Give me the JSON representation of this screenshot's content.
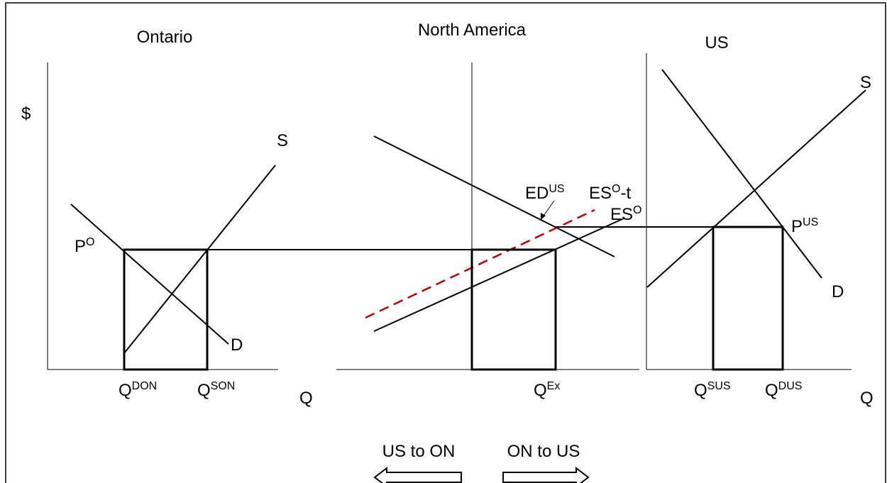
{
  "panels": [
    {
      "title": "Ontario",
      "y_label": "$",
      "x_label": "Q",
      "curves": [
        "S",
        "D"
      ],
      "price": {
        "base": "P",
        "sup": "O"
      },
      "quantities": [
        {
          "base": "Q",
          "sup": "DON"
        },
        {
          "base": "Q",
          "sup": "SON"
        }
      ]
    },
    {
      "title": "North America",
      "curves": [
        {
          "base": "ED",
          "sup": "US"
        },
        {
          "base": "ES",
          "sup": "O",
          "suffix": "-t"
        },
        {
          "base": "ES",
          "sup": "O"
        }
      ],
      "quantities": [
        {
          "base": "Q",
          "sup": "Ex"
        }
      ]
    },
    {
      "title": "US",
      "x_label": "Q",
      "curves": [
        "S",
        "D"
      ],
      "price": {
        "base": "P",
        "sup": "US"
      },
      "quantities": [
        {
          "base": "Q",
          "sup": "SUS"
        },
        {
          "base": "Q",
          "sup": "DUS"
        }
      ]
    }
  ],
  "arrows": [
    "US to ON",
    "ON to US"
  ]
}
